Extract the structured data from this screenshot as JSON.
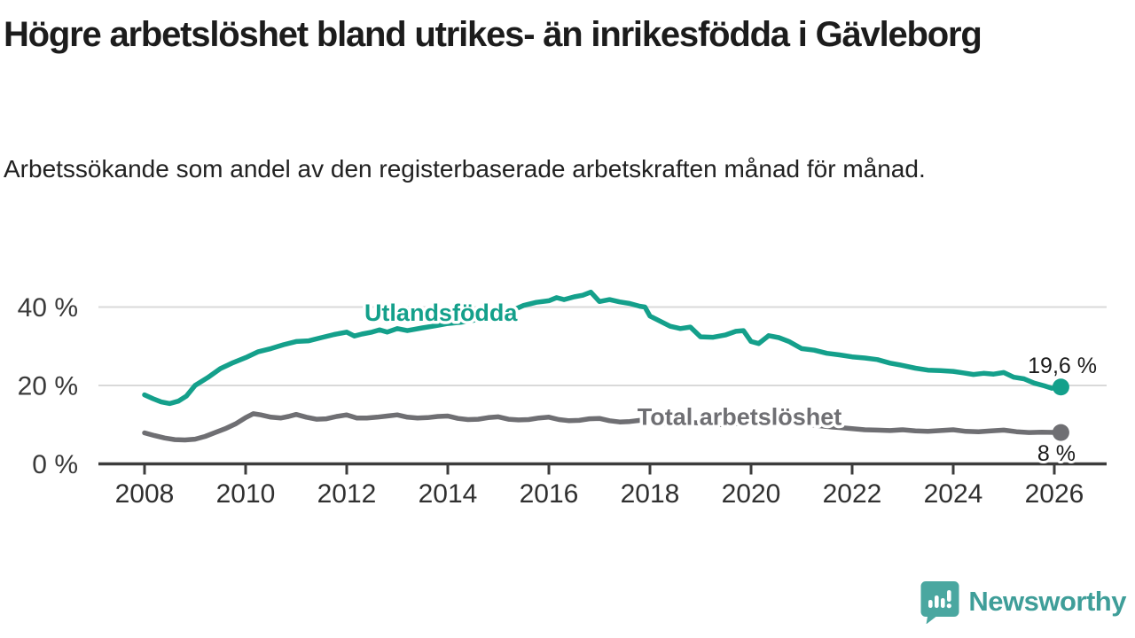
{
  "header": {
    "title": "Högre arbetslöshet bland utrikes- än inrikesfödda i Gävleborg",
    "subtitle": "Arbetssökande som andel av den registerbaserade arbetskraften månad för månad."
  },
  "footer": {
    "brand": "Newsworthy",
    "logo_icon": "speech-bubble-bar-chart-icon"
  },
  "colors": {
    "series_foreign_born": "#14a08b",
    "series_total": "#6f6f73",
    "grid": "#d9d9d9",
    "axis": "#3c3c3c",
    "brand_teal": "#4aa7a0",
    "text": "#1c1c1c"
  },
  "chart_data": {
    "type": "line",
    "title": "Högre arbetslöshet bland utrikes- än inrikesfödda i Gävleborg",
    "subtitle": "Arbetssökande som andel av den registerbaserade arbetskraften månad för månad.",
    "xlabel": "",
    "ylabel": "",
    "grid": "horizontal-only",
    "legend_position": "inline-labels",
    "xlim": [
      2007.1,
      2027.0
    ],
    "ylim": [
      0,
      46
    ],
    "x_ticks": [
      2008,
      2010,
      2012,
      2014,
      2016,
      2018,
      2020,
      2022,
      2024,
      2026
    ],
    "y_ticks": [
      {
        "value": 40,
        "label": "40 %"
      },
      {
        "value": 20,
        "label": "20 %"
      },
      {
        "value": 0,
        "label": "0 %"
      }
    ],
    "series": [
      {
        "name": "Utlandsfödda",
        "color": "#14a08b",
        "end_value": 19.6,
        "end_label": "19,6 %",
        "label_anchor": {
          "x": 2012.35,
          "y": 36.5
        },
        "points": [
          [
            2008.0,
            17.6
          ],
          [
            2008.17,
            16.6
          ],
          [
            2008.33,
            15.8
          ],
          [
            2008.5,
            15.4
          ],
          [
            2008.67,
            16.0
          ],
          [
            2008.83,
            17.3
          ],
          [
            2009.0,
            20.0
          ],
          [
            2009.25,
            22.0
          ],
          [
            2009.5,
            24.3
          ],
          [
            2009.75,
            25.8
          ],
          [
            2010.0,
            27.1
          ],
          [
            2010.25,
            28.6
          ],
          [
            2010.5,
            29.4
          ],
          [
            2010.75,
            30.4
          ],
          [
            2011.0,
            31.2
          ],
          [
            2011.25,
            31.4
          ],
          [
            2011.5,
            32.2
          ],
          [
            2011.75,
            33.0
          ],
          [
            2012.0,
            33.6
          ],
          [
            2012.15,
            32.6
          ],
          [
            2012.3,
            33.1
          ],
          [
            2012.5,
            33.6
          ],
          [
            2012.65,
            34.2
          ],
          [
            2012.8,
            33.6
          ],
          [
            2013.0,
            34.5
          ],
          [
            2013.2,
            34.0
          ],
          [
            2013.5,
            34.7
          ],
          [
            2013.75,
            35.2
          ],
          [
            2014.0,
            35.8
          ],
          [
            2014.25,
            36.1
          ],
          [
            2014.5,
            36.6
          ],
          [
            2014.75,
            37.3
          ],
          [
            2015.0,
            38.2
          ],
          [
            2015.25,
            39.0
          ],
          [
            2015.5,
            40.4
          ],
          [
            2015.75,
            41.2
          ],
          [
            2016.0,
            41.6
          ],
          [
            2016.15,
            42.4
          ],
          [
            2016.3,
            41.9
          ],
          [
            2016.5,
            42.6
          ],
          [
            2016.67,
            43.0
          ],
          [
            2016.83,
            43.8
          ],
          [
            2017.0,
            41.4
          ],
          [
            2017.2,
            41.9
          ],
          [
            2017.4,
            41.3
          ],
          [
            2017.6,
            40.9
          ],
          [
            2017.8,
            40.2
          ],
          [
            2017.9,
            40.0
          ],
          [
            2018.0,
            37.7
          ],
          [
            2018.2,
            36.4
          ],
          [
            2018.4,
            35.1
          ],
          [
            2018.6,
            34.5
          ],
          [
            2018.8,
            34.9
          ],
          [
            2019.0,
            32.4
          ],
          [
            2019.25,
            32.3
          ],
          [
            2019.5,
            32.9
          ],
          [
            2019.7,
            33.8
          ],
          [
            2019.85,
            34.0
          ],
          [
            2020.0,
            31.2
          ],
          [
            2020.15,
            30.7
          ],
          [
            2020.35,
            32.7
          ],
          [
            2020.55,
            32.2
          ],
          [
            2020.75,
            31.2
          ],
          [
            2021.0,
            29.4
          ],
          [
            2021.25,
            29.0
          ],
          [
            2021.5,
            28.2
          ],
          [
            2021.75,
            27.8
          ],
          [
            2022.0,
            27.3
          ],
          [
            2022.25,
            27.0
          ],
          [
            2022.5,
            26.6
          ],
          [
            2022.75,
            25.7
          ],
          [
            2023.0,
            25.1
          ],
          [
            2023.25,
            24.4
          ],
          [
            2023.5,
            23.9
          ],
          [
            2023.75,
            23.8
          ],
          [
            2024.0,
            23.6
          ],
          [
            2024.2,
            23.2
          ],
          [
            2024.4,
            22.8
          ],
          [
            2024.6,
            23.1
          ],
          [
            2024.8,
            22.9
          ],
          [
            2025.0,
            23.3
          ],
          [
            2025.2,
            22.1
          ],
          [
            2025.4,
            21.7
          ],
          [
            2025.6,
            20.6
          ],
          [
            2025.8,
            19.9
          ],
          [
            2025.95,
            19.3
          ],
          [
            2026.13,
            19.6
          ]
        ]
      },
      {
        "name": "Total arbetslöshet",
        "color": "#6f6f73",
        "end_value": 8,
        "end_label": "8 %",
        "label_anchor": {
          "x": 2017.75,
          "y": 10.0
        },
        "points": [
          [
            2008.0,
            7.9
          ],
          [
            2008.2,
            7.2
          ],
          [
            2008.4,
            6.6
          ],
          [
            2008.6,
            6.2
          ],
          [
            2008.8,
            6.1
          ],
          [
            2009.0,
            6.3
          ],
          [
            2009.2,
            7.0
          ],
          [
            2009.4,
            8.0
          ],
          [
            2009.6,
            9.0
          ],
          [
            2009.8,
            10.2
          ],
          [
            2010.0,
            11.8
          ],
          [
            2010.15,
            12.8
          ],
          [
            2010.3,
            12.5
          ],
          [
            2010.5,
            11.9
          ],
          [
            2010.7,
            11.7
          ],
          [
            2010.85,
            12.1
          ],
          [
            2011.0,
            12.6
          ],
          [
            2011.2,
            11.9
          ],
          [
            2011.4,
            11.4
          ],
          [
            2011.6,
            11.5
          ],
          [
            2011.8,
            12.1
          ],
          [
            2012.0,
            12.5
          ],
          [
            2012.2,
            11.7
          ],
          [
            2012.4,
            11.7
          ],
          [
            2012.6,
            11.9
          ],
          [
            2012.8,
            12.2
          ],
          [
            2013.0,
            12.5
          ],
          [
            2013.2,
            11.9
          ],
          [
            2013.4,
            11.7
          ],
          [
            2013.6,
            11.8
          ],
          [
            2013.8,
            12.1
          ],
          [
            2014.0,
            12.2
          ],
          [
            2014.2,
            11.6
          ],
          [
            2014.4,
            11.3
          ],
          [
            2014.6,
            11.4
          ],
          [
            2014.8,
            11.8
          ],
          [
            2015.0,
            12.0
          ],
          [
            2015.2,
            11.4
          ],
          [
            2015.4,
            11.2
          ],
          [
            2015.6,
            11.3
          ],
          [
            2015.8,
            11.7
          ],
          [
            2016.0,
            11.9
          ],
          [
            2016.2,
            11.3
          ],
          [
            2016.4,
            11.0
          ],
          [
            2016.6,
            11.1
          ],
          [
            2016.8,
            11.5
          ],
          [
            2017.0,
            11.6
          ],
          [
            2017.2,
            11.0
          ],
          [
            2017.4,
            10.7
          ],
          [
            2017.6,
            10.8
          ],
          [
            2017.8,
            11.1
          ],
          [
            2018.0,
            11.2
          ],
          [
            2018.2,
            10.5
          ],
          [
            2018.4,
            10.2
          ],
          [
            2018.6,
            10.3
          ],
          [
            2018.8,
            10.6
          ],
          [
            2019.0,
            10.4
          ],
          [
            2019.25,
            10.0
          ],
          [
            2019.5,
            10.0
          ],
          [
            2019.75,
            10.3
          ],
          [
            2020.0,
            10.5
          ],
          [
            2020.3,
            11.0
          ],
          [
            2020.6,
            10.8
          ],
          [
            2020.8,
            10.5
          ],
          [
            2021.0,
            10.3
          ],
          [
            2021.3,
            9.8
          ],
          [
            2021.6,
            9.4
          ],
          [
            2021.8,
            9.2
          ],
          [
            2022.0,
            9.0
          ],
          [
            2022.25,
            8.7
          ],
          [
            2022.5,
            8.6
          ],
          [
            2022.75,
            8.5
          ],
          [
            2023.0,
            8.7
          ],
          [
            2023.25,
            8.4
          ],
          [
            2023.5,
            8.3
          ],
          [
            2023.75,
            8.5
          ],
          [
            2024.0,
            8.7
          ],
          [
            2024.25,
            8.3
          ],
          [
            2024.5,
            8.2
          ],
          [
            2024.75,
            8.4
          ],
          [
            2025.0,
            8.6
          ],
          [
            2025.25,
            8.2
          ],
          [
            2025.5,
            8.0
          ],
          [
            2025.75,
            8.1
          ],
          [
            2026.13,
            8.0
          ]
        ]
      }
    ]
  }
}
